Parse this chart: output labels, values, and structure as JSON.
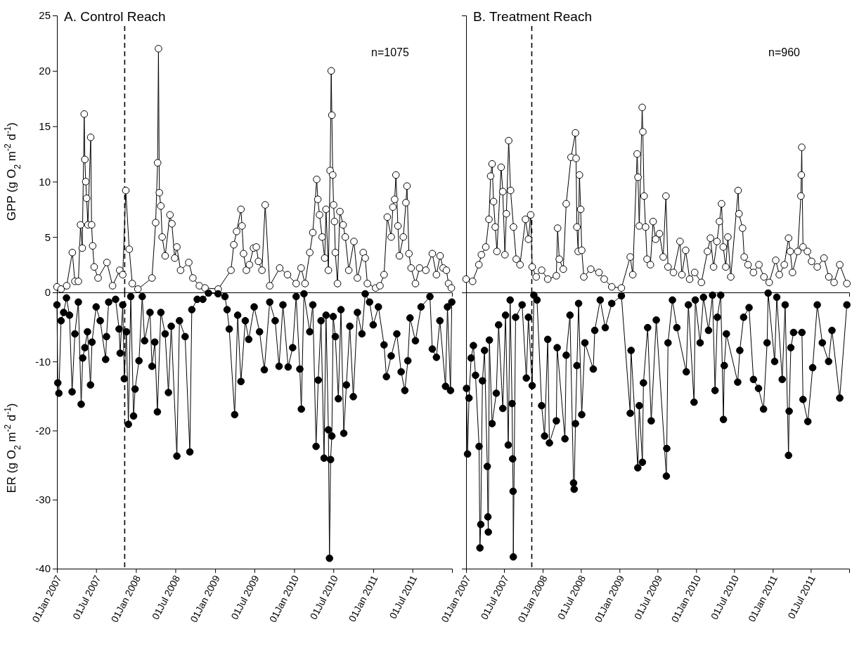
{
  "chart_data": [
    {
      "type": "line",
      "title": "A. Control Reach",
      "ylabel": "GPP (g O$_{2}$ m$^{-2}$ d$^{-1}$)",
      "annotations": [
        "n=1075"
      ],
      "marker": "circle",
      "line_style": "solid",
      "tick_labels": "y",
      "xlim": [
        "2007-01-01",
        "2011-12-31"
      ],
      "ylim": [
        0,
        25
      ],
      "yticks": [
        0,
        5,
        10,
        15,
        20,
        25
      ],
      "ref_lines": [
        {
          "axis": "x",
          "value": "2007-11-10",
          "color": "#000000",
          "line_style": "dashed"
        }
      ],
      "series": [
        {
          "color": "#ffffff",
          "x": [
            "2007-01-01",
            "2007-01-20",
            "2007-02-15",
            "2007-03-13",
            "2007-03-25",
            "2007-04-10",
            "2007-04-20",
            "2007-04-28",
            "2007-05-07",
            "2007-05-10",
            "2007-05-14",
            "2007-05-18",
            "2007-05-24",
            "2007-06-06",
            "2007-06-10",
            "2007-06-15",
            "2007-06-22",
            "2007-07-10",
            "2007-08-20",
            "2007-09-15",
            "2007-10-18",
            "2007-11-01",
            "2007-11-15",
            "2007-12-01",
            "2007-12-15",
            "2008-01-10",
            "2008-03-15",
            "2008-04-01",
            "2008-04-10",
            "2008-04-14",
            "2008-04-18",
            "2008-04-25",
            "2008-05-01",
            "2008-05-15",
            "2008-06-06",
            "2008-06-15",
            "2008-06-28",
            "2008-07-08",
            "2008-07-25",
            "2008-09-01",
            "2008-09-20",
            "2008-10-20",
            "2008-11-15",
            "2009-01-15",
            "2009-03-15",
            "2009-03-28",
            "2009-04-10",
            "2009-04-30",
            "2009-05-05",
            "2009-05-12",
            "2009-05-25",
            "2009-06-08",
            "2009-06-27",
            "2009-07-10",
            "2009-07-20",
            "2009-08-05",
            "2009-08-20",
            "2009-09-10",
            "2009-10-26",
            "2009-12-01",
            "2010-01-10",
            "2010-02-02",
            "2010-02-20",
            "2010-03-14",
            "2010-03-28",
            "2010-04-15",
            "2010-04-20",
            "2010-04-28",
            "2010-05-10",
            "2010-05-22",
            "2010-05-28",
            "2010-06-08",
            "2010-06-16",
            "2010-06-21",
            "2010-06-24",
            "2010-06-28",
            "2010-07-02",
            "2010-07-06",
            "2010-07-10",
            "2010-07-20",
            "2010-07-31",
            "2010-08-15",
            "2010-08-25",
            "2010-09-10",
            "2010-10-04",
            "2010-10-20",
            "2010-11-16",
            "2010-11-25",
            "2010-12-05",
            "2011-01-12",
            "2011-02-01",
            "2011-02-20",
            "2011-03-07",
            "2011-03-25",
            "2011-04-02",
            "2011-04-10",
            "2011-04-16",
            "2011-04-25",
            "2011-05-02",
            "2011-05-20",
            "2011-06-01",
            "2011-06-06",
            "2011-06-15",
            "2011-06-25",
            "2011-07-15",
            "2011-08-03",
            "2011-09-01",
            "2011-10-01",
            "2011-10-20",
            "2011-11-06",
            "2011-11-20",
            "2011-12-05",
            "2011-12-15",
            "2011-12-28"
          ],
          "values": [
            0.5,
            0.3,
            0.6,
            3.6,
            1.0,
            1.0,
            6.1,
            4.0,
            16.1,
            12.0,
            10.0,
            8.5,
            6.1,
            14.0,
            6.1,
            4.2,
            2.3,
            1.3,
            2.7,
            0.6,
            2.0,
            1.6,
            9.2,
            3.9,
            0.8,
            0.3,
            1.3,
            6.3,
            11.7,
            22.0,
            9.0,
            7.8,
            5.0,
            3.3,
            7.0,
            6.2,
            3.1,
            4.1,
            2.0,
            2.7,
            1.3,
            0.6,
            0.4,
            0.3,
            2.0,
            4.3,
            5.5,
            7.5,
            6.0,
            3.5,
            2.0,
            2.5,
            4.0,
            4.1,
            2.8,
            2.0,
            7.9,
            0.6,
            2.2,
            1.6,
            0.8,
            2.2,
            0.8,
            3.6,
            5.4,
            10.2,
            8.4,
            7.0,
            5.0,
            3.1,
            7.5,
            2.0,
            11.0,
            20.0,
            16.0,
            10.6,
            7.9,
            6.4,
            3.6,
            0.8,
            7.3,
            6.1,
            5.0,
            2.0,
            4.6,
            1.3,
            3.6,
            3.1,
            0.8,
            0.4,
            0.6,
            1.6,
            6.8,
            5.0,
            7.7,
            8.4,
            10.6,
            6.0,
            3.3,
            5.0,
            8.1,
            9.6,
            3.5,
            2.2,
            0.8,
            2.2,
            2.0,
            3.5,
            1.6,
            3.3,
            2.2,
            2.0,
            0.8,
            0.4
          ]
        }
      ]
    },
    {
      "type": "line",
      "title": "B. Treatment Reach",
      "annotations": [
        "n=960"
      ],
      "marker": "circle",
      "line_style": "solid",
      "tick_labels": false,
      "xlim": [
        "2007-01-01",
        "2011-12-31"
      ],
      "ylim": [
        0,
        25
      ],
      "ref_lines": [
        {
          "axis": "x",
          "value": "2007-11-10",
          "color": "#000000",
          "line_style": "dashed"
        }
      ],
      "series": [
        {
          "color": "#ffffff",
          "x": [
            "2007-01-01",
            "2007-02-01",
            "2007-03-03",
            "2007-03-15",
            "2007-04-05",
            "2007-04-20",
            "2007-04-28",
            "2007-05-05",
            "2007-05-12",
            "2007-05-20",
            "2007-05-28",
            "2007-06-17",
            "2007-06-25",
            "2007-07-05",
            "2007-07-12",
            "2007-07-23",
            "2007-08-01",
            "2007-08-15",
            "2007-08-28",
            "2007-09-15",
            "2007-10-11",
            "2007-10-25",
            "2007-11-05",
            "2007-11-12",
            "2007-12-01",
            "2007-12-27",
            "2008-01-25",
            "2008-03-06",
            "2008-03-12",
            "2008-03-20",
            "2008-04-08",
            "2008-04-22",
            "2008-05-15",
            "2008-06-05",
            "2008-06-08",
            "2008-06-12",
            "2008-06-18",
            "2008-06-24",
            "2008-06-30",
            "2008-07-05",
            "2008-07-15",
            "2008-08-17",
            "2008-09-25",
            "2008-10-20",
            "2008-11-25",
            "2009-01-10",
            "2009-02-21",
            "2009-03-05",
            "2009-03-26",
            "2009-03-30",
            "2009-04-05",
            "2009-04-19",
            "2009-04-22",
            "2009-04-28",
            "2009-05-05",
            "2009-05-12",
            "2009-05-28",
            "2009-06-10",
            "2009-06-22",
            "2009-07-10",
            "2009-07-28",
            "2009-08-10",
            "2009-08-20",
            "2009-09-15",
            "2009-10-16",
            "2009-10-25",
            "2009-11-12",
            "2009-12-01",
            "2009-12-25",
            "2010-01-26",
            "2010-02-24",
            "2010-03-10",
            "2010-03-25",
            "2010-04-10",
            "2010-04-22",
            "2010-05-02",
            "2010-05-10",
            "2010-05-22",
            "2010-06-01",
            "2010-06-15",
            "2010-07-20",
            "2010-07-24",
            "2010-08-10",
            "2010-08-18",
            "2010-09-05",
            "2010-10-01",
            "2010-10-27",
            "2010-11-20",
            "2010-12-15",
            "2011-01-15",
            "2011-02-01",
            "2011-02-25",
            "2011-03-17",
            "2011-03-25",
            "2011-04-05",
            "2011-04-30",
            "2011-05-15",
            "2011-05-17",
            "2011-05-19",
            "2011-05-25",
            "2011-06-15",
            "2011-07-05",
            "2011-08-01",
            "2011-09-02",
            "2011-09-25",
            "2011-10-20",
            "2011-11-16",
            "2011-12-20"
          ],
          "values": [
            1.2,
            1.0,
            2.5,
            3.4,
            4.1,
            6.6,
            10.5,
            11.6,
            8.2,
            5.9,
            3.7,
            11.3,
            9.1,
            3.4,
            7.1,
            13.7,
            9.2,
            5.9,
            3.0,
            2.5,
            6.6,
            4.8,
            7.0,
            2.3,
            1.4,
            2.0,
            1.2,
            1.5,
            5.8,
            3.0,
            2.1,
            8.0,
            12.2,
            14.4,
            12.1,
            5.9,
            3.7,
            10.6,
            7.5,
            3.8,
            1.4,
            2.1,
            1.8,
            1.2,
            0.5,
            0.4,
            3.2,
            1.6,
            12.5,
            10.4,
            6.0,
            16.7,
            14.5,
            8.7,
            5.9,
            3.0,
            2.5,
            6.4,
            4.8,
            5.3,
            3.2,
            8.7,
            2.3,
            1.8,
            4.6,
            1.6,
            3.8,
            1.2,
            1.8,
            0.9,
            3.7,
            4.9,
            2.3,
            4.6,
            6.4,
            8.0,
            4.1,
            2.3,
            5.0,
            1.4,
            9.2,
            7.1,
            5.8,
            3.2,
            2.5,
            1.8,
            2.5,
            1.4,
            0.9,
            2.9,
            1.6,
            2.5,
            4.9,
            3.7,
            1.8,
            3.7,
            8.7,
            10.6,
            13.1,
            4.1,
            3.7,
            2.8,
            2.3,
            3.1,
            1.4,
            0.9,
            2.5,
            0.8
          ]
        }
      ]
    },
    {
      "type": "line",
      "ylabel": "ER (g O$_{2}$ m$^{-2}$ d$^{-1}$)",
      "marker": "circle",
      "line_style": "solid",
      "xlim": [
        "2007-01-01",
        "2011-12-31"
      ],
      "xticks": [
        {
          "value": "2007-01-01",
          "label": "01Jan 2007"
        },
        {
          "value": "2007-07-01",
          "label": "01Jul 2007"
        },
        {
          "value": "2008-01-01",
          "label": "01Jan 2008"
        },
        {
          "value": "2008-07-01",
          "label": "01Jul 2008"
        },
        {
          "value": "2009-01-01",
          "label": "01Jan 2009"
        },
        {
          "value": "2009-07-01",
          "label": "01Jul 2009"
        },
        {
          "value": "2010-01-01",
          "label": "01Jan 2010"
        },
        {
          "value": "2010-07-01",
          "label": "01Jul 2010"
        },
        {
          "value": "2011-01-01",
          "label": "01Jan 2011"
        },
        {
          "value": "2011-07-01",
          "label": "01Jul 2011"
        }
      ],
      "ylim": [
        -40,
        0
      ],
      "yticks": [
        -40,
        -30,
        -20,
        -10
      ],
      "ref_lines": [
        {
          "axis": "x",
          "value": "2007-11-10",
          "color": "#000000",
          "line_style": "dashed"
        }
      ],
      "series": [
        {
          "color": "#000000",
          "x": [
            "2007-01-01",
            "2007-01-05",
            "2007-01-10",
            "2007-01-20",
            "2007-02-01",
            "2007-02-14",
            "2007-02-28",
            "2007-03-12",
            "2007-03-25",
            "2007-04-10",
            "2007-04-23",
            "2007-04-30",
            "2007-05-10",
            "2007-05-22",
            "2007-06-05",
            "2007-06-12",
            "2007-07-01",
            "2007-07-20",
            "2007-08-14",
            "2007-08-18",
            "2007-08-28",
            "2007-09-29",
            "2007-10-15",
            "2007-10-20",
            "2007-11-01",
            "2007-11-08",
            "2007-11-18",
            "2007-11-27",
            "2007-12-08",
            "2007-12-21",
            "2007-12-28",
            "2008-01-15",
            "2008-01-30",
            "2008-02-10",
            "2008-03-06",
            "2008-03-15",
            "2008-03-28",
            "2008-04-09",
            "2008-04-25",
            "2008-05-15",
            "2008-05-30",
            "2008-06-12",
            "2008-07-08",
            "2008-07-20",
            "2008-08-15",
            "2008-09-06",
            "2008-09-15",
            "2008-10-10",
            "2008-11-05",
            "2008-12-01",
            "2009-01-14",
            "2009-02-15",
            "2009-02-25",
            "2009-03-07",
            "2009-04-01",
            "2009-04-15",
            "2009-04-30",
            "2009-05-20",
            "2009-06-05",
            "2009-06-30",
            "2009-07-25",
            "2009-08-16",
            "2009-09-10",
            "2009-10-05",
            "2009-10-23",
            "2009-11-10",
            "2009-12-04",
            "2009-12-25",
            "2010-01-10",
            "2010-01-27",
            "2010-02-03",
            "2010-02-15",
            "2010-03-14",
            "2010-03-28",
            "2010-04-12",
            "2010-04-22",
            "2010-05-05",
            "2010-05-19",
            "2010-05-28",
            "2010-06-08",
            "2010-06-13",
            "2010-06-18",
            "2010-06-24",
            "2010-06-30",
            "2010-07-10",
            "2010-07-24",
            "2010-08-05",
            "2010-08-18",
            "2010-08-30",
            "2010-09-15",
            "2010-10-01",
            "2010-10-20",
            "2010-11-10",
            "2010-11-25",
            "2010-12-15",
            "2011-01-01",
            "2011-01-25",
            "2011-02-20",
            "2011-03-03",
            "2011-03-25",
            "2011-04-20",
            "2011-05-10",
            "2011-05-27",
            "2011-06-10",
            "2011-06-20",
            "2011-07-15",
            "2011-08-10",
            "2011-09-20",
            "2011-10-01",
            "2011-10-20",
            "2011-11-05",
            "2011-12-01",
            "2011-12-10",
            "2011-12-24",
            "2011-12-30"
          ],
          "values": [
            -1.8,
            -13.1,
            -14.6,
            -4.1,
            -2.9,
            -0.8,
            -3.3,
            -14.4,
            -6.0,
            -1.4,
            -16.2,
            -9.5,
            -8.0,
            -5.7,
            -13.4,
            -7.2,
            -2.1,
            -4.1,
            -9.7,
            -6.4,
            -1.4,
            -1.0,
            -5.3,
            -8.8,
            -1.8,
            -12.5,
            -5.7,
            -19.1,
            -0.6,
            -17.9,
            -14.0,
            -9.9,
            -0.6,
            -7.0,
            -2.9,
            -10.7,
            -7.2,
            -17.3,
            -2.9,
            -6.0,
            -14.5,
            -4.9,
            -23.7,
            -4.1,
            -6.4,
            -23.1,
            -2.5,
            -1.0,
            -1.0,
            -0.1,
            -0.2,
            -0.6,
            -2.5,
            -5.3,
            -17.7,
            -3.3,
            -12.9,
            -4.1,
            -6.8,
            -2.1,
            -5.7,
            -11.2,
            -1.4,
            -4.1,
            -10.7,
            -1.8,
            -10.8,
            -8.0,
            -0.6,
            -11.1,
            -16.9,
            -0.2,
            -5.7,
            -1.8,
            -22.3,
            -12.7,
            -4.1,
            -24.0,
            -3.3,
            -19.9,
            -38.5,
            -24.2,
            -20.8,
            -3.5,
            -6.4,
            -15.4,
            -2.5,
            -20.4,
            -13.4,
            -4.9,
            -15.1,
            -2.9,
            -6.0,
            -0.2,
            -1.4,
            -4.7,
            -2.1,
            -7.6,
            -12.2,
            -9.2,
            -6.0,
            -11.5,
            -14.2,
            -9.9,
            -3.7,
            -7.0,
            -2.1,
            -0.6,
            -8.2,
            -9.4,
            -4.1,
            -13.6,
            -2.1,
            -14.2,
            -1.4
          ]
        }
      ]
    },
    {
      "type": "line",
      "marker": "circle",
      "line_style": "solid",
      "tick_labels": "x",
      "xlim": [
        "2007-01-01",
        "2011-12-31"
      ],
      "xticks": [
        {
          "value": "2007-01-01",
          "label": "01Jan 2007"
        },
        {
          "value": "2007-07-01",
          "label": "01Jul 2007"
        },
        {
          "value": "2008-01-01",
          "label": "01Jan 2008"
        },
        {
          "value": "2008-07-01",
          "label": "01Jul 2008"
        },
        {
          "value": "2009-01-01",
          "label": "01Jan 2009"
        },
        {
          "value": "2009-07-01",
          "label": "01Jul 2009"
        },
        {
          "value": "2010-01-01",
          "label": "01Jan 2010"
        },
        {
          "value": "2010-07-01",
          "label": "01Jul 2010"
        },
        {
          "value": "2011-01-01",
          "label": "01Jan 2011"
        },
        {
          "value": "2011-07-01",
          "label": "01Jul 2011"
        }
      ],
      "ylim": [
        -40,
        0
      ],
      "ref_lines": [
        {
          "axis": "x",
          "value": "2007-11-10",
          "color": "#000000",
          "line_style": "dashed"
        }
      ],
      "series": [
        {
          "color": "#000000",
          "x": [
            "2007-01-03",
            "2007-01-08",
            "2007-01-15",
            "2007-01-25",
            "2007-02-05",
            "2007-02-15",
            "2007-03-04",
            "2007-03-08",
            "2007-03-12",
            "2007-03-20",
            "2007-03-30",
            "2007-04-12",
            "2007-04-15",
            "2007-04-17",
            "2007-04-22",
            "2007-05-05",
            "2007-05-25",
            "2007-06-05",
            "2007-06-25",
            "2007-07-08",
            "2007-07-21",
            "2007-07-30",
            "2007-08-08",
            "2007-08-11",
            "2007-08-13",
            "2007-08-14",
            "2007-08-25",
            "2007-09-25",
            "2007-10-15",
            "2007-10-25",
            "2007-11-12",
            "2007-11-20",
            "2007-12-05",
            "2007-12-27",
            "2008-01-10",
            "2008-01-25",
            "2008-02-02",
            "2008-03-06",
            "2008-03-10",
            "2008-04-16",
            "2008-04-22",
            "2008-05-10",
            "2008-05-27",
            "2008-05-30",
            "2008-06-05",
            "2008-06-12",
            "2008-06-20",
            "2008-07-05",
            "2008-07-20",
            "2008-08-29",
            "2008-09-05",
            "2008-10-01",
            "2008-10-25",
            "2008-11-25",
            "2009-01-10",
            "2009-02-21",
            "2009-02-25",
            "2009-03-29",
            "2009-04-05",
            "2009-04-20",
            "2009-04-25",
            "2009-05-15",
            "2009-06-01",
            "2009-06-25",
            "2009-08-12",
            "2009-08-14",
            "2009-08-20",
            "2009-09-10",
            "2009-10-01",
            "2009-11-15",
            "2009-11-25",
            "2009-12-22",
            "2009-12-28",
            "2010-01-20",
            "2010-02-05",
            "2010-03-01",
            "2010-03-20",
            "2010-04-01",
            "2010-04-12",
            "2010-04-28",
            "2010-05-11",
            "2010-05-15",
            "2010-05-25",
            "2010-07-18",
            "2010-07-28",
            "2010-08-15",
            "2010-09-10",
            "2010-10-01",
            "2010-10-25",
            "2010-11-18",
            "2010-12-05",
            "2010-12-10",
            "2011-01-10",
            "2011-01-20",
            "2011-02-15",
            "2011-03-01",
            "2011-03-17",
            "2011-03-20",
            "2011-03-28",
            "2011-04-10",
            "2011-05-20",
            "2011-05-25",
            "2011-06-17",
            "2011-07-10",
            "2011-08-01",
            "2011-08-25",
            "2011-09-24",
            "2011-10-10",
            "2011-11-16",
            "2011-12-20"
          ],
          "values": [
            -13.9,
            -23.4,
            -15.3,
            -9.5,
            -7.7,
            -12.0,
            -22.3,
            -37.0,
            -33.6,
            -12.8,
            -8.4,
            -25.2,
            -32.5,
            -34.7,
            -6.9,
            -19.0,
            -14.6,
            -4.7,
            -16.8,
            -3.3,
            -22.1,
            -1.1,
            -16.1,
            -24.1,
            -28.8,
            -38.3,
            -3.6,
            -1.8,
            -12.4,
            -3.6,
            -13.5,
            -0.4,
            -1.1,
            -16.4,
            -20.8,
            -6.8,
            -21.8,
            -18.6,
            -8.0,
            -21.2,
            -9.1,
            -3.3,
            -27.6,
            -28.5,
            -19.0,
            -10.6,
            -1.6,
            -17.7,
            -7.3,
            -11.1,
            -5.5,
            -1.1,
            -5.1,
            -1.6,
            -0.5,
            -17.5,
            -8.4,
            -25.4,
            -16.4,
            -24.6,
            -13.1,
            -5.1,
            -18.6,
            -4.0,
            -26.6,
            -22.6,
            -7.3,
            -1.1,
            -5.1,
            -11.5,
            -1.8,
            -15.9,
            -1.1,
            -7.3,
            -0.7,
            -5.5,
            -0.4,
            -14.2,
            -3.6,
            -0.4,
            -18.4,
            -10.6,
            -6.0,
            -13.0,
            -8.4,
            -3.6,
            -2.2,
            -12.6,
            -13.9,
            -16.9,
            -7.3,
            -0.1,
            -10.0,
            -0.7,
            -12.6,
            -1.8,
            -23.6,
            -17.2,
            -8.0,
            -5.8,
            -5.8,
            -15.5,
            -18.7,
            -10.9,
            -1.8,
            -7.3,
            -10.0,
            -5.5,
            -15.3,
            -1.8
          ]
        }
      ]
    }
  ]
}
